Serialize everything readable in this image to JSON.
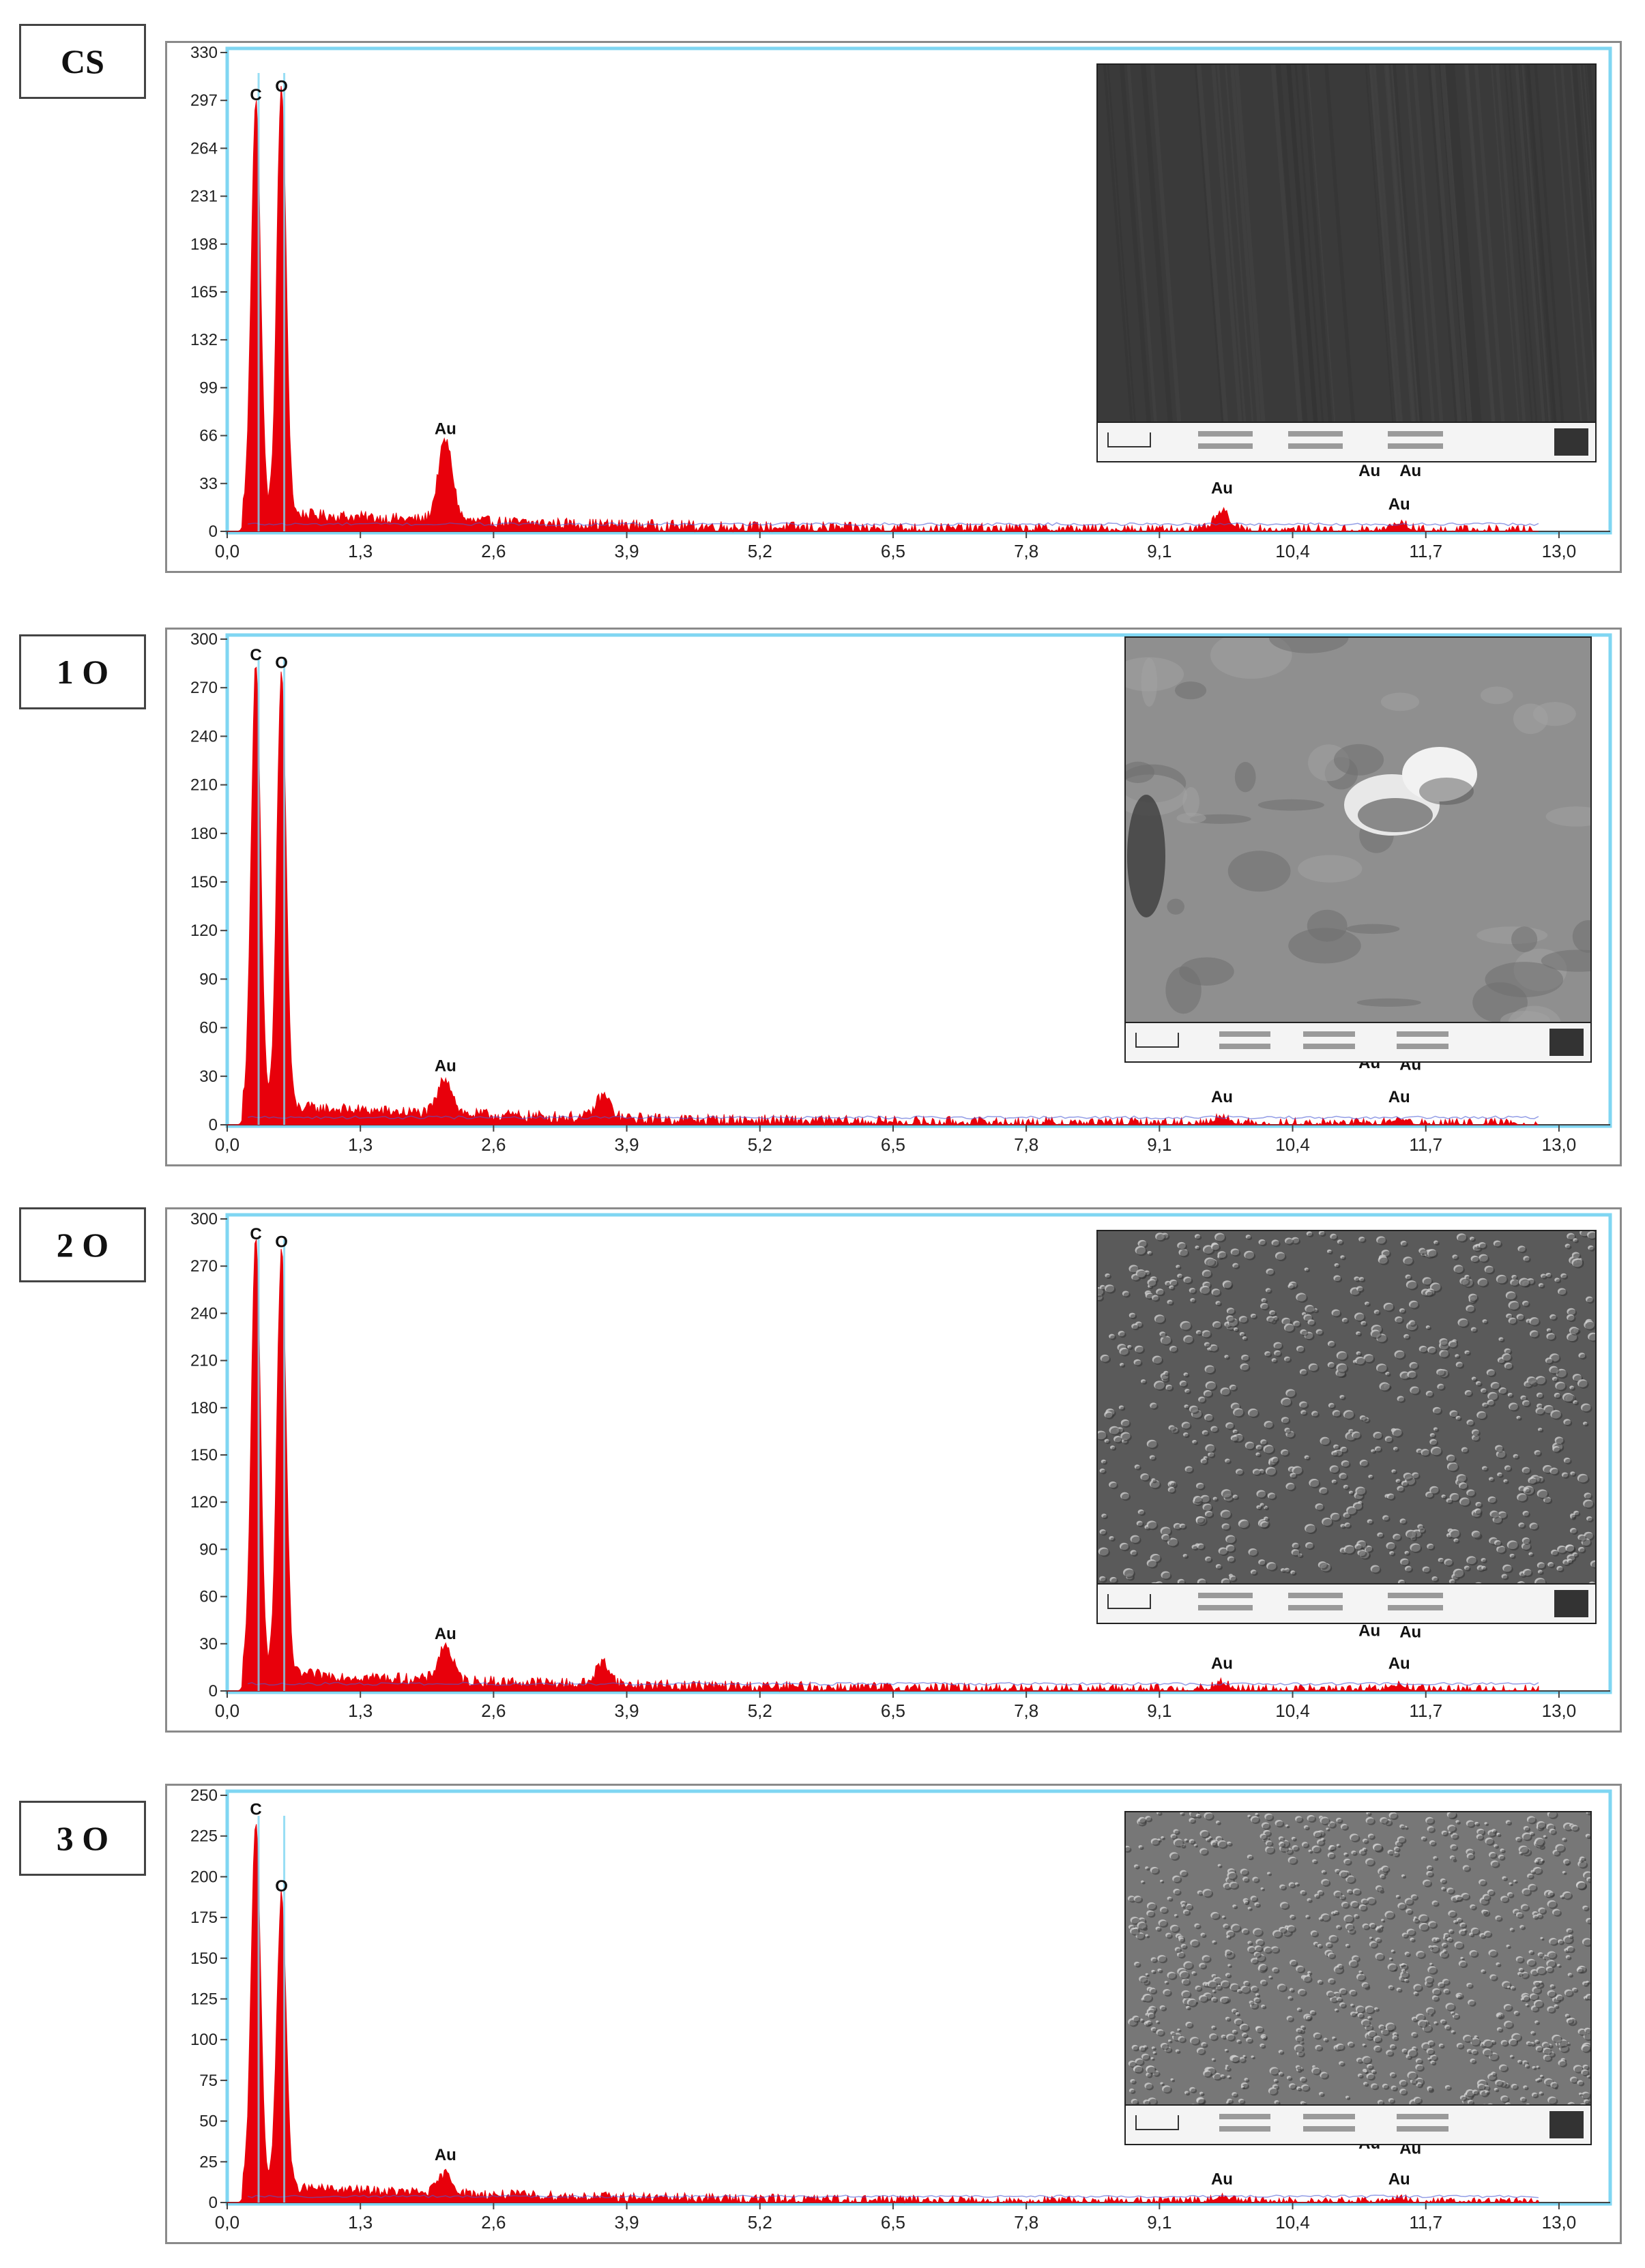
{
  "colors": {
    "spectrum": "#e8000b",
    "background_trace": "#4b5bd6",
    "frame_blue": "#7fd6f2",
    "marker": "#7fd6f2",
    "axis": "#444444"
  },
  "chart_data": [
    {
      "type": "area",
      "panel_label": "CS",
      "x_ticks": [
        "0,0",
        "1,3",
        "2,6",
        "3,9",
        "5,2",
        "6,5",
        "7,8",
        "9,1",
        "10,4",
        "11,7",
        "13,0"
      ],
      "y_ticks": [
        "330",
        "297",
        "264",
        "231",
        "198",
        "165",
        "132",
        "99",
        "66",
        "33",
        "0"
      ],
      "xlim": [
        0,
        13.5
      ],
      "ylim": [
        0,
        330
      ],
      "peaks": [
        {
          "element": "C",
          "x": 0.28,
          "y": 285
        },
        {
          "element": "O",
          "x": 0.53,
          "y": 295
        },
        {
          "element": "Au",
          "x": 2.13,
          "y": 55
        },
        {
          "element": "Au",
          "x": 9.71,
          "y": 12
        },
        {
          "element": "Au",
          "x": 11.44,
          "y": 5
        }
      ],
      "labels": [
        {
          "text": "C",
          "x": 0.28,
          "y": 297
        },
        {
          "text": "O",
          "x": 0.53,
          "y": 303
        },
        {
          "text": "Au",
          "x": 2.13,
          "y": 67
        },
        {
          "text": "Au",
          "x": 9.71,
          "y": 26
        },
        {
          "text": "Au",
          "x": 11.15,
          "y": 38
        },
        {
          "text": "Au",
          "x": 11.55,
          "y": 38
        },
        {
          "text": "Au",
          "x": 11.44,
          "y": 15
        }
      ],
      "sem_variant": "smooth"
    },
    {
      "type": "area",
      "panel_label": "1 O",
      "x_ticks": [
        "0,0",
        "1,3",
        "2,6",
        "3,9",
        "5,2",
        "6,5",
        "7,8",
        "9,1",
        "10,4",
        "11,7",
        "13,0"
      ],
      "y_ticks": [
        "300",
        "270",
        "240",
        "210",
        "180",
        "150",
        "120",
        "90",
        "60",
        "30",
        "0"
      ],
      "xlim": [
        0,
        13.5
      ],
      "ylim": [
        0,
        300
      ],
      "peaks": [
        {
          "element": "C",
          "x": 0.28,
          "y": 275
        },
        {
          "element": "O",
          "x": 0.53,
          "y": 268
        },
        {
          "element": "Au",
          "x": 2.13,
          "y": 22
        },
        {
          "element": "Au",
          "x": 3.67,
          "y": 14
        },
        {
          "element": "Au",
          "x": 9.71,
          "y": 4
        },
        {
          "element": "Au",
          "x": 11.44,
          "y": 3
        }
      ],
      "labels": [
        {
          "text": "C",
          "x": 0.28,
          "y": 287
        },
        {
          "text": "O",
          "x": 0.53,
          "y": 282
        },
        {
          "text": "Au",
          "x": 2.13,
          "y": 33
        },
        {
          "text": "Au",
          "x": 9.71,
          "y": 14
        },
        {
          "text": "Au",
          "x": 11.15,
          "y": 35
        },
        {
          "text": "Au",
          "x": 11.55,
          "y": 34
        },
        {
          "text": "Au",
          "x": 11.44,
          "y": 14
        }
      ],
      "sem_variant": "blob"
    },
    {
      "type": "area",
      "panel_label": "2 O",
      "x_ticks": [
        "0,0",
        "1,3",
        "2,6",
        "3,9",
        "5,2",
        "6,5",
        "7,8",
        "9,1",
        "10,4",
        "11,7",
        "13,0"
      ],
      "y_ticks": [
        "300",
        "270",
        "240",
        "210",
        "180",
        "150",
        "120",
        "90",
        "60",
        "30",
        "0"
      ],
      "xlim": [
        0,
        13.5
      ],
      "ylim": [
        0,
        300
      ],
      "peaks": [
        {
          "element": "C",
          "x": 0.28,
          "y": 275
        },
        {
          "element": "O",
          "x": 0.53,
          "y": 268
        },
        {
          "element": "Au",
          "x": 2.13,
          "y": 22
        },
        {
          "element": "Au",
          "x": 3.67,
          "y": 14
        },
        {
          "element": "Au",
          "x": 9.71,
          "y": 4
        },
        {
          "element": "Au",
          "x": 11.44,
          "y": 3
        }
      ],
      "labels": [
        {
          "text": "C",
          "x": 0.28,
          "y": 287
        },
        {
          "text": "O",
          "x": 0.53,
          "y": 282
        },
        {
          "text": "Au",
          "x": 2.13,
          "y": 33
        },
        {
          "text": "Au",
          "x": 9.71,
          "y": 14
        },
        {
          "text": "Au",
          "x": 11.15,
          "y": 35
        },
        {
          "text": "Au",
          "x": 11.55,
          "y": 34
        },
        {
          "text": "Au",
          "x": 11.44,
          "y": 14
        }
      ],
      "sem_variant": "grainy"
    },
    {
      "type": "area",
      "panel_label": "3 O",
      "x_ticks": [
        "0,0",
        "1,3",
        "2,6",
        "3,9",
        "5,2",
        "6,5",
        "7,8",
        "9,1",
        "10,4",
        "11,7",
        "13,0"
      ],
      "y_ticks": [
        "250",
        "225",
        "200",
        "175",
        "150",
        "125",
        "100",
        "75",
        "50",
        "25",
        "0"
      ],
      "xlim": [
        0,
        13.5
      ],
      "ylim": [
        0,
        250
      ],
      "peaks": [
        {
          "element": "C",
          "x": 0.28,
          "y": 225
        },
        {
          "element": "O",
          "x": 0.53,
          "y": 180
        },
        {
          "element": "Au",
          "x": 2.13,
          "y": 12
        },
        {
          "element": "Au",
          "x": 9.71,
          "y": 3
        },
        {
          "element": "Au",
          "x": 11.44,
          "y": 2
        }
      ],
      "labels": [
        {
          "text": "C",
          "x": 0.28,
          "y": 238
        },
        {
          "text": "O",
          "x": 0.53,
          "y": 191
        },
        {
          "text": "Au",
          "x": 2.13,
          "y": 26
        },
        {
          "text": "Au",
          "x": 9.71,
          "y": 11
        },
        {
          "text": "Au",
          "x": 11.15,
          "y": 33
        },
        {
          "text": "Au",
          "x": 11.55,
          "y": 30
        },
        {
          "text": "Au",
          "x": 11.44,
          "y": 11
        }
      ],
      "sem_variant": "fine"
    }
  ]
}
